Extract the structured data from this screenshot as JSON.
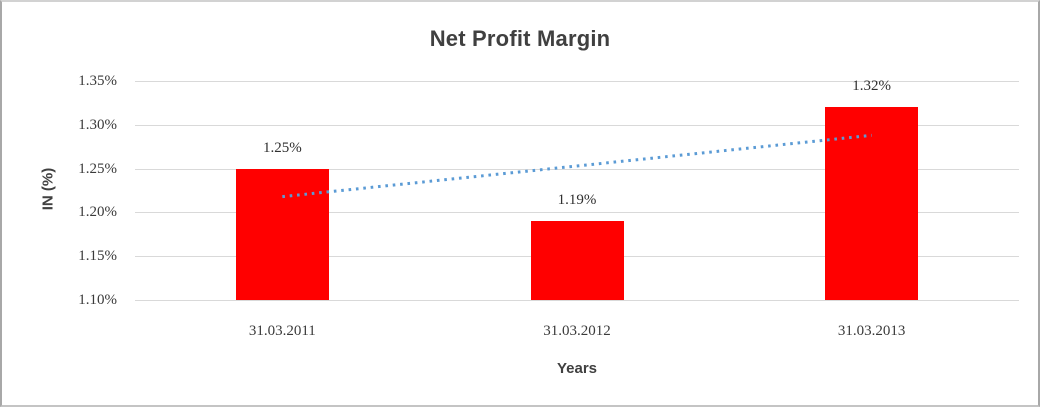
{
  "chart_data": {
    "type": "bar",
    "title": "Net Profit Margin",
    "xlabel": "Years",
    "ylabel": "IN (%)",
    "categories": [
      "31.03.2011",
      "31.03.2012",
      "31.03.2013"
    ],
    "values": [
      1.25,
      1.19,
      1.32
    ],
    "data_labels": [
      "1.25%",
      "1.19%",
      "1.32%"
    ],
    "ylim": [
      1.1,
      1.35
    ],
    "ytick_step": 0.05,
    "yticks": [
      {
        "value": 1.35,
        "label": "1.35%"
      },
      {
        "value": 1.3,
        "label": "1.30%"
      },
      {
        "value": 1.25,
        "label": "1.25%"
      },
      {
        "value": 1.2,
        "label": "1.20%"
      },
      {
        "value": 1.15,
        "label": "1.15%"
      },
      {
        "value": 1.1,
        "label": "1.10%"
      }
    ],
    "grid": true,
    "grid_color": "#d9d9d9",
    "legend": false,
    "bar_color": "#ff0000",
    "trendline": {
      "type": "linear",
      "style": "dotted",
      "color": "#5b9bd5",
      "start_value": 1.218,
      "end_value": 1.288
    }
  }
}
